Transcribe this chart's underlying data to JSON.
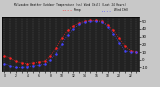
{
  "title": "Milwaukee Weather Outdoor Temperature (vs) Wind Chill (Last 24 Hours)",
  "bg_color": "#c8c8c8",
  "plot_bg_color": "#222222",
  "grid_color": "#666666",
  "border_color": "#000000",
  "x_ticks": [
    0,
    1,
    2,
    3,
    4,
    5,
    6,
    7,
    8,
    9,
    10,
    11,
    12,
    13,
    14,
    15,
    16,
    17,
    18,
    19,
    20,
    21,
    22,
    23
  ],
  "ylim": [
    -15,
    55
  ],
  "ytick_vals": [
    -10,
    0,
    10,
    20,
    30,
    40,
    50
  ],
  "ytick_labels": [
    "-10",
    "0",
    "10",
    "20",
    "30",
    "40",
    "50"
  ],
  "temp": [
    5,
    2,
    -2,
    -4,
    -5,
    -4,
    -3,
    -2,
    5,
    15,
    28,
    38,
    44,
    48,
    50,
    51,
    51,
    50,
    45,
    38,
    28,
    18,
    12,
    10
  ],
  "windchill": [
    -5,
    -8,
    -10,
    -10,
    -9,
    -8,
    -7,
    -6,
    0,
    8,
    20,
    32,
    40,
    46,
    49,
    50,
    50,
    49,
    43,
    34,
    22,
    12,
    10,
    10
  ],
  "temp_color": "#ff2222",
  "windchill_color": "#4444ff",
  "text_color": "#000000",
  "title_color": "#000000"
}
